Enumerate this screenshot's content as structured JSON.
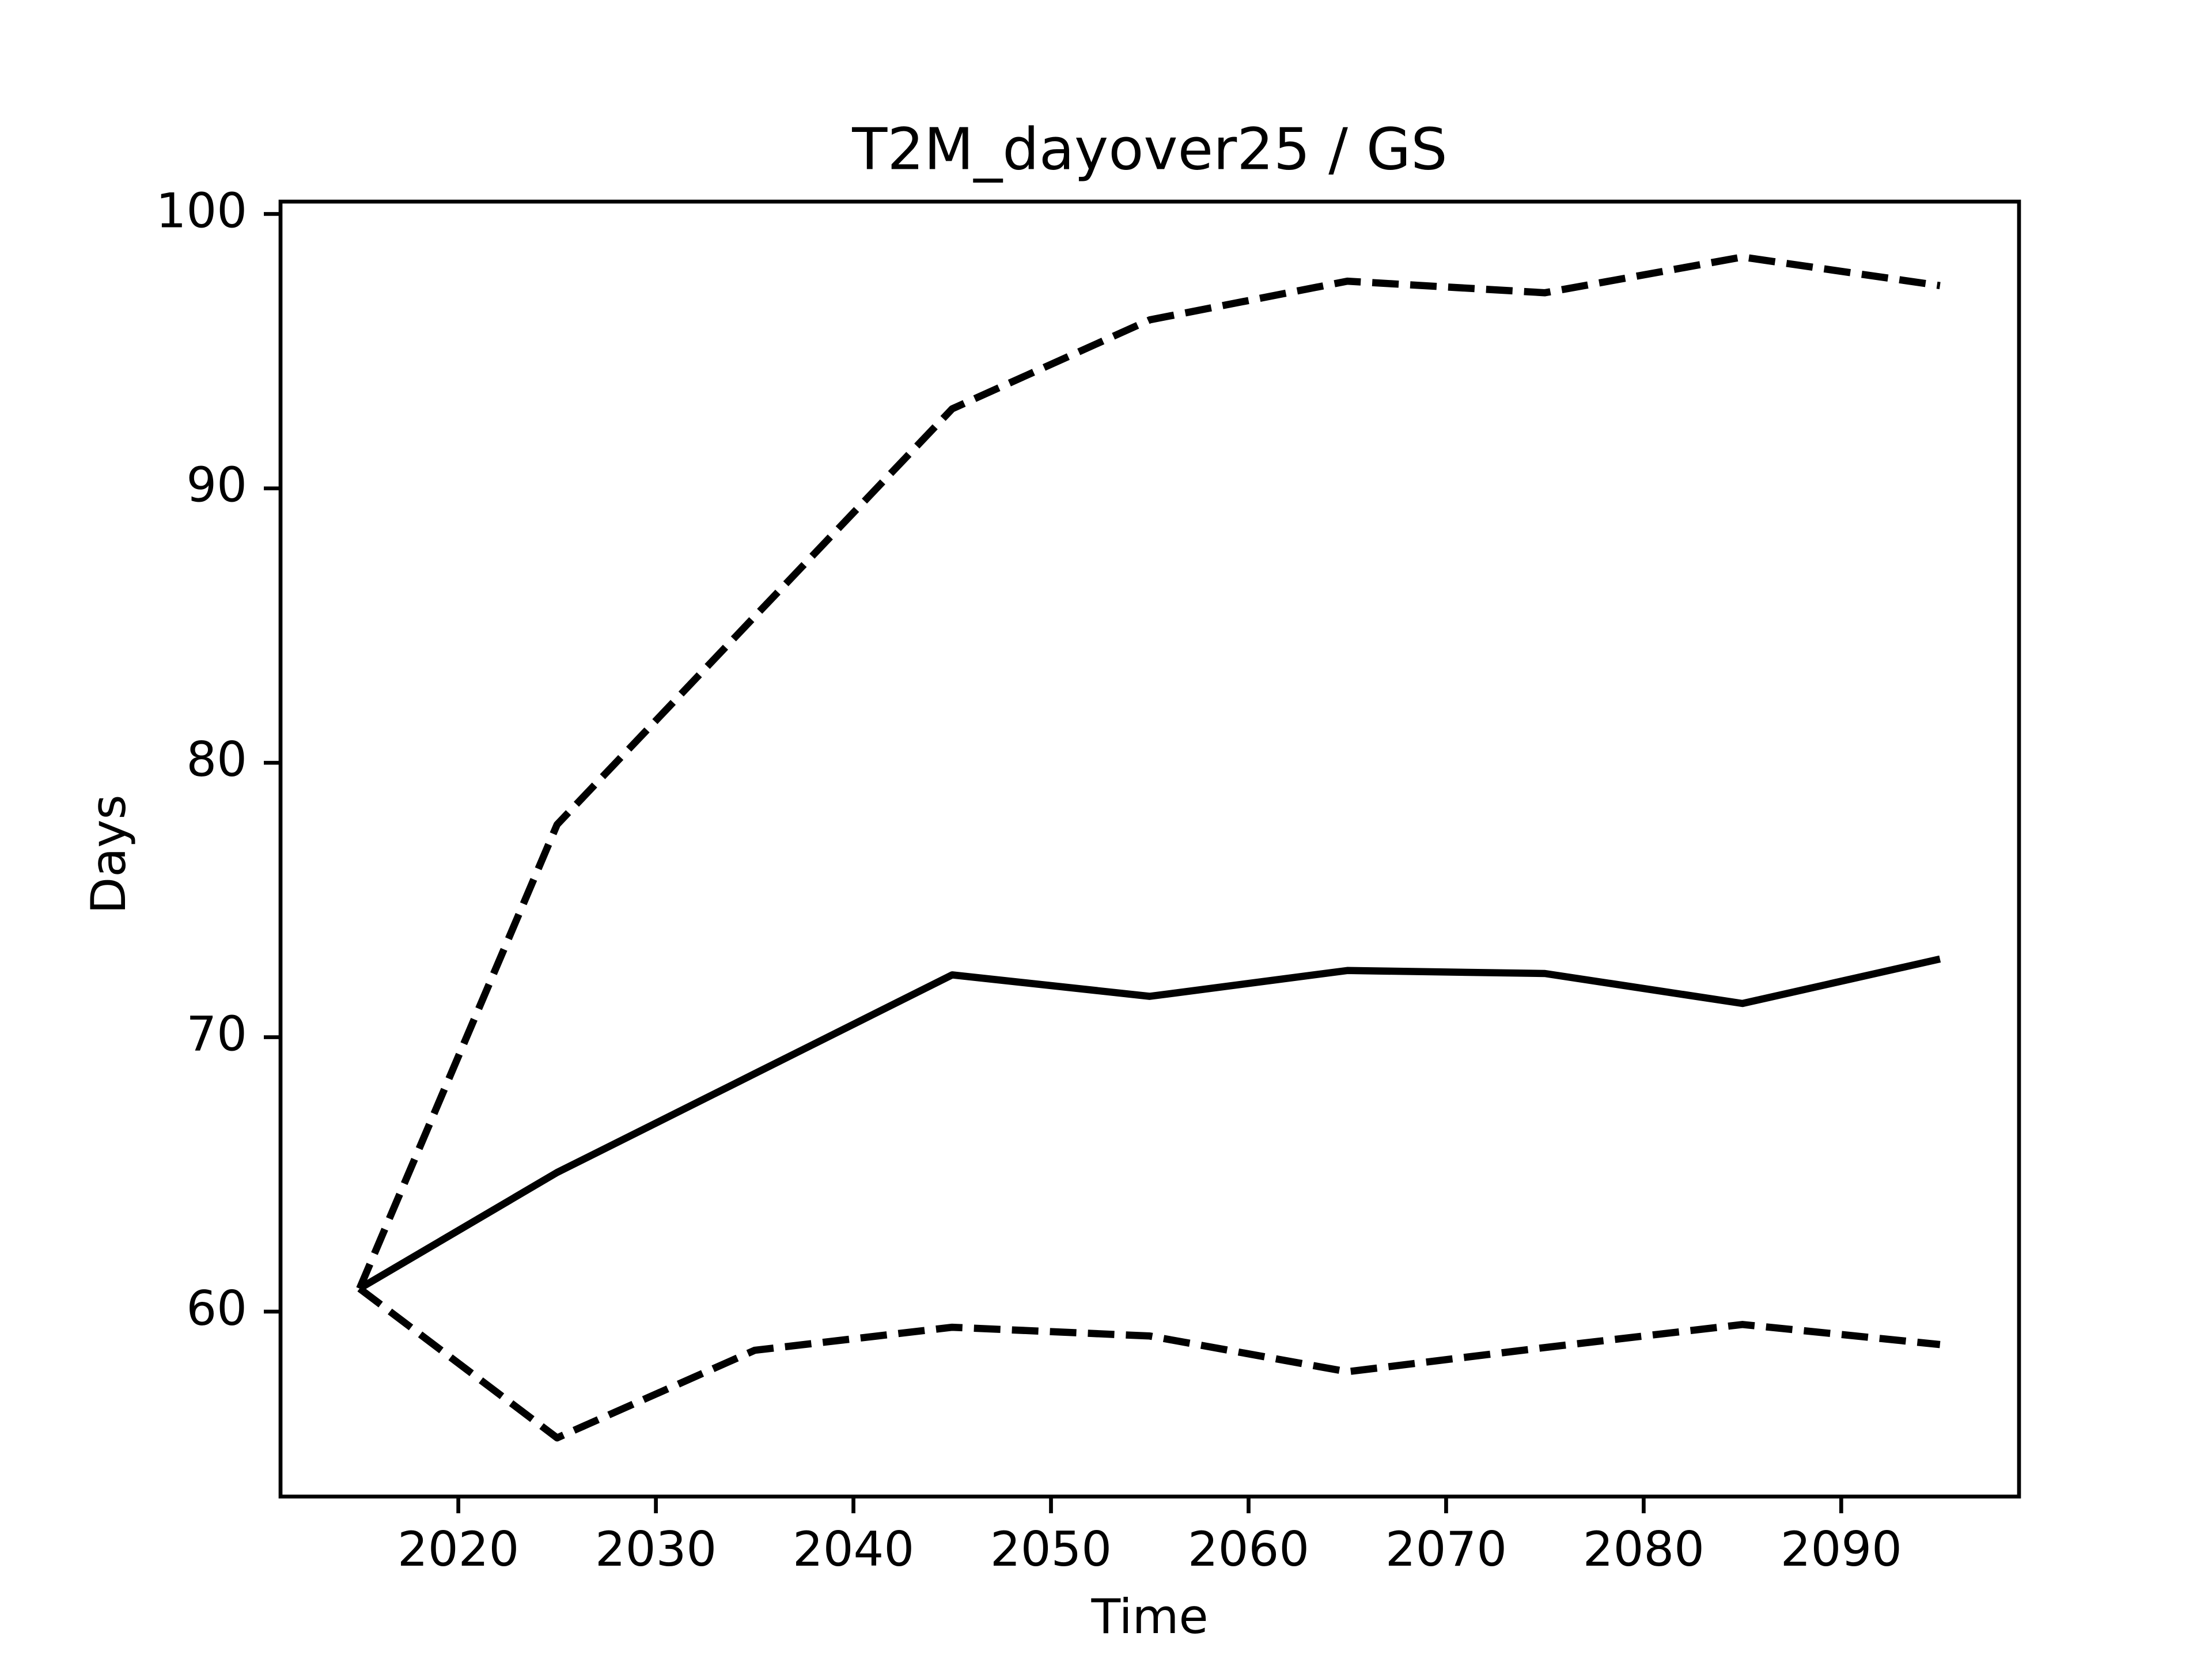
{
  "chart_data": {
    "type": "line",
    "title": "T2M_dayover25 / GS",
    "x_label": "Time",
    "y_label": "Days",
    "x": [
      2015,
      2025,
      2035,
      2045,
      2055,
      2065,
      2075,
      2085,
      2095
    ],
    "series": [
      {
        "color": "#000000",
        "dash": false,
        "values": [
          60.84,
          65.07,
          68.67,
          72.27,
          71.49,
          72.43,
          72.32,
          71.23,
          72.85
        ]
      },
      {
        "color": "#000000",
        "dash": true,
        "values": [
          60.84,
          77.75,
          85.33,
          92.9,
          96.14,
          97.55,
          97.13,
          98.43,
          97.39
        ]
      },
      {
        "color": "#000000",
        "dash": true,
        "values": [
          60.84,
          55.4,
          58.59,
          59.43,
          59.11,
          57.81,
          58.69,
          59.53,
          58.8
        ]
      }
    ],
    "xlim": [
      2011,
      2099
    ],
    "xticks": [
      2020,
      2030,
      2040,
      2050,
      2060,
      2070,
      2080,
      2090
    ],
    "ylim": [
      53.26,
      100.45
    ],
    "yticks": [
      60,
      70,
      80,
      90,
      100
    ],
    "grid": false
  }
}
